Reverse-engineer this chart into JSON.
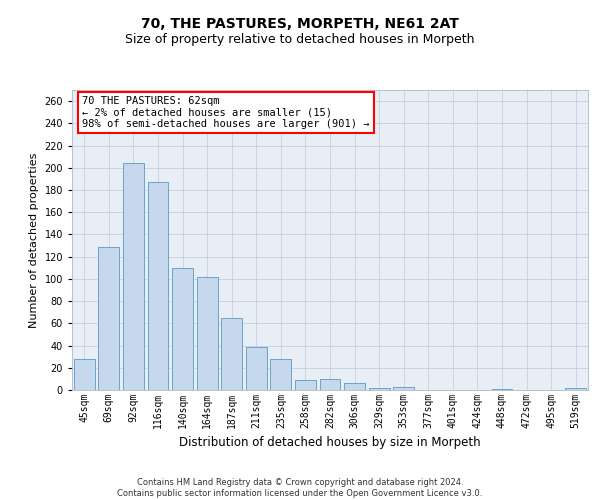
{
  "title": "70, THE PASTURES, MORPETH, NE61 2AT",
  "subtitle": "Size of property relative to detached houses in Morpeth",
  "xlabel": "Distribution of detached houses by size in Morpeth",
  "ylabel": "Number of detached properties",
  "categories": [
    "45sqm",
    "69sqm",
    "92sqm",
    "116sqm",
    "140sqm",
    "164sqm",
    "187sqm",
    "211sqm",
    "235sqm",
    "258sqm",
    "282sqm",
    "306sqm",
    "329sqm",
    "353sqm",
    "377sqm",
    "401sqm",
    "424sqm",
    "448sqm",
    "472sqm",
    "495sqm",
    "519sqm"
  ],
  "values": [
    28,
    129,
    204,
    187,
    110,
    102,
    65,
    39,
    28,
    9,
    10,
    6,
    2,
    3,
    0,
    0,
    0,
    1,
    0,
    0,
    2
  ],
  "bar_color": "#c5d8ed",
  "bar_edge_color": "#5a9abf",
  "annotation_line1": "70 THE PASTURES: 62sqm",
  "annotation_line2": "← 2% of detached houses are smaller (15)",
  "annotation_line3": "98% of semi-detached houses are larger (901) →",
  "annotation_box_color": "white",
  "annotation_box_edge_color": "red",
  "ylim": [
    0,
    270
  ],
  "yticks": [
    0,
    20,
    40,
    60,
    80,
    100,
    120,
    140,
    160,
    180,
    200,
    220,
    240,
    260
  ],
  "grid_color": "#c8d0dc",
  "background_color": "#e8eef6",
  "footer_line1": "Contains HM Land Registry data © Crown copyright and database right 2024.",
  "footer_line2": "Contains public sector information licensed under the Open Government Licence v3.0.",
  "title_fontsize": 10,
  "subtitle_fontsize": 9,
  "xlabel_fontsize": 8.5,
  "ylabel_fontsize": 8,
  "tick_fontsize": 7,
  "annotation_fontsize": 7.5,
  "footer_fontsize": 6
}
